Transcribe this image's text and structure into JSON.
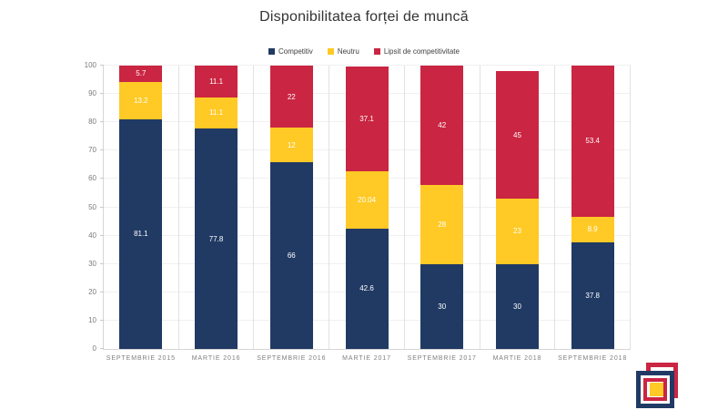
{
  "chart_data": {
    "type": "bar",
    "stacked": true,
    "title": "Disponibilitatea forței de muncă",
    "categories": [
      "SEPTEMBRIE 2015",
      "MARTIE 2016",
      "SEPTEMBRIE 2016",
      "MARTIE 2017",
      "SEPTEMBRIE 2017",
      "MARTIE 2018",
      "SEPTEMBRIE 2018"
    ],
    "series": [
      {
        "name": "Competitiv",
        "color": "#213A64",
        "values": [
          81.1,
          77.8,
          66,
          42.6,
          30,
          30,
          37.8
        ]
      },
      {
        "name": "Neutru",
        "color": "#FFC926",
        "values": [
          13.2,
          11.1,
          12,
          20.04,
          28,
          23,
          8.9
        ]
      },
      {
        "name": "Lipsit de competitivitate",
        "color": "#CA2542",
        "values": [
          5.7,
          11.1,
          22,
          37.1,
          42,
          45,
          53.4
        ]
      }
    ],
    "xlabel": "",
    "ylabel": "",
    "ylim": [
      0,
      100
    ],
    "ytick_step": 10,
    "grid": true,
    "legend_position": "top",
    "data_label_color": "#FFFFFF"
  }
}
